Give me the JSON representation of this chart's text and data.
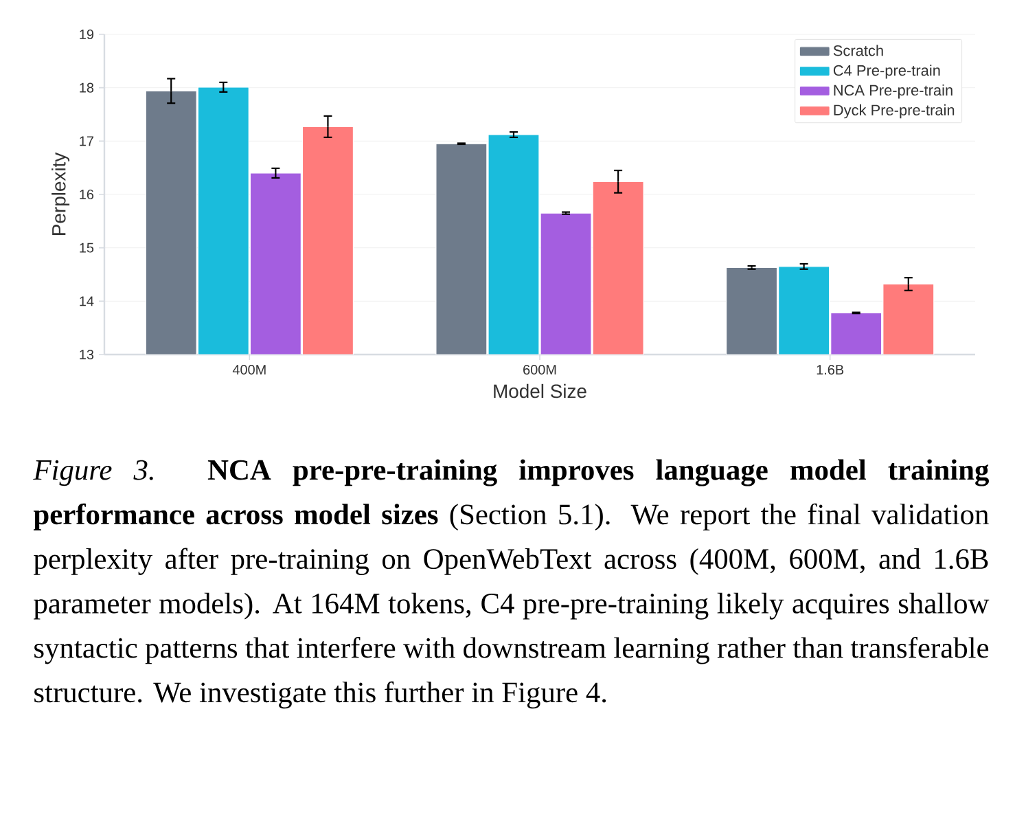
{
  "chart_data": {
    "type": "bar",
    "xlabel": "Model Size",
    "ylabel": "Perplexity",
    "categories": [
      "400M",
      "600M",
      "1.6B"
    ],
    "series": [
      {
        "name": "Scratch",
        "color": "#6e7b8b",
        "values": [
          17.94,
          16.95,
          14.63
        ],
        "errors": [
          0.23,
          0.01,
          0.03
        ]
      },
      {
        "name": "C4 Pre-pre-train",
        "color": "#1abcdc",
        "values": [
          18.01,
          17.12,
          14.65
        ],
        "errors": [
          0.09,
          0.05,
          0.05
        ]
      },
      {
        "name": "NCA Pre-pre-train",
        "color": "#a45ee0",
        "values": [
          16.4,
          15.65,
          13.78
        ],
        "errors": [
          0.09,
          0.02,
          0.01
        ]
      },
      {
        "name": "Dyck Pre-pre-train",
        "color": "#ff7b7b",
        "values": [
          17.27,
          16.24,
          14.32
        ],
        "errors": [
          0.2,
          0.21,
          0.12
        ]
      }
    ],
    "ylim": [
      13,
      19
    ],
    "yticks": [
      13,
      14,
      15,
      16,
      17,
      18,
      19
    ],
    "grid": "y",
    "legend": "top right",
    "annotations": [
      "*Figure 3.* **NCA pre-pre-training improves language model training performance across model sizes** (Section 5.1). We report the final validation perplexity after pre-training on OpenWebText across (400M, 600M, and 1.6B parameter models). At 164M tokens, C4 pre-pre-training likely acquires shallow syntactic patterns that interfere with downstream learning rather than transferable structure. We investigate this further in Figure 4."
    ]
  }
}
